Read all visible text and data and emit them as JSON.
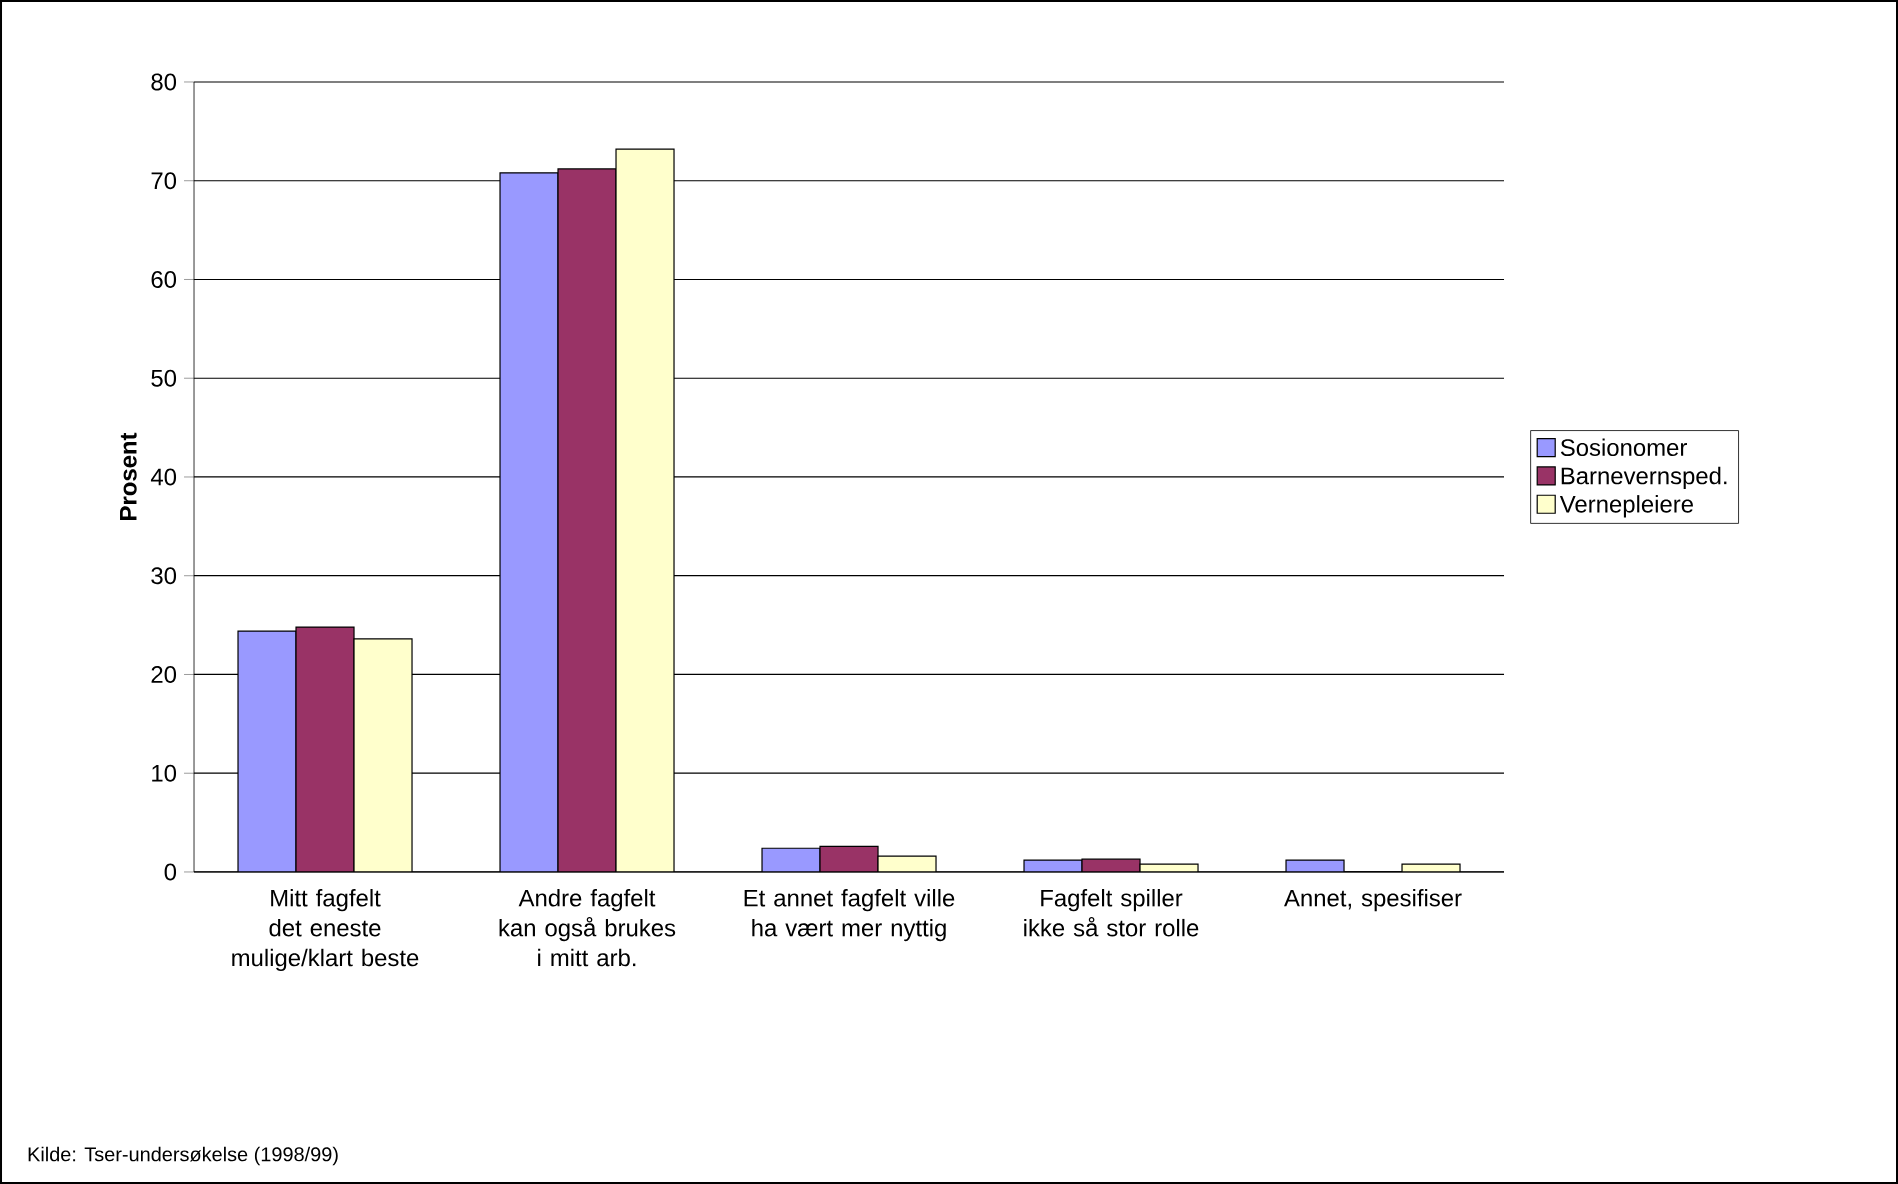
{
  "chart_data": {
    "type": "bar",
    "ylabel": "**Prosent**",
    "categories": [
      "Mitt fagfelt det eneste mulige/klart beste",
      "Andre fagfelt kan også brukes i mitt arb.",
      "Et annet fagfelt ville ha vært mer nyttig",
      "Fagfelt spiller ikke så stor rolle",
      "Annet, spesifiser"
    ],
    "series": [
      {
        "name": "Sosionomer",
        "color": "#9999ff",
        "values": [
          24.4,
          70.8,
          2.4,
          1.2,
          1.2
        ]
      },
      {
        "name": "Barnevernsped.",
        "color": "#993366",
        "values": [
          24.8,
          71.2,
          2.6,
          1.3,
          0
        ]
      },
      {
        "name": "Vernepleiere",
        "color": "#ffffcc",
        "values": [
          23.6,
          73.2,
          1.6,
          0.8,
          0.8
        ]
      }
    ],
    "ylim": [
      0,
      80
    ],
    "yticks": [
      0,
      10,
      20,
      30,
      40,
      50,
      60,
      70,
      80
    ],
    "grid": "y",
    "legend": "right",
    "annotations": [
      "Kilde: Tser-undersøkelse (1998/99)"
    ]
  }
}
